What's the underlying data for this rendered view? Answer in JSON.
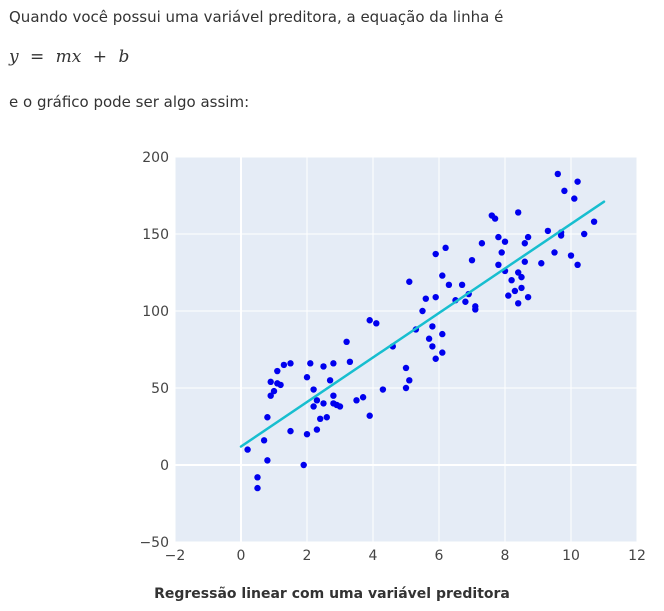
{
  "intro_text": "Quando você possui uma variável preditora, a equação da linha é",
  "equation": {
    "y": "y",
    "eq": "=",
    "m": "m",
    "x": "x",
    "plus": "+",
    "b": "b"
  },
  "after_text": "e o gráfico pode ser algo assim:",
  "chart_data": {
    "type": "scatter",
    "title": "Regressão linear com uma variável preditora",
    "xlim": [
      -2,
      12
    ],
    "ylim": [
      -50,
      200
    ],
    "xticks": [
      -2,
      0,
      2,
      4,
      6,
      8,
      10,
      12
    ],
    "yticks": [
      -50,
      0,
      50,
      100,
      150,
      200
    ],
    "xtick_labels": [
      "−2",
      "0",
      "2",
      "4",
      "6",
      "8",
      "10",
      "12"
    ],
    "ytick_labels": [
      "−50",
      "0",
      "50",
      "100",
      "150",
      "200"
    ],
    "grid": true,
    "series": [
      {
        "kind": "points",
        "color": "#0000ee",
        "points": [
          [
            0.2,
            10
          ],
          [
            0.5,
            -8
          ],
          [
            0.5,
            -15
          ],
          [
            0.7,
            16
          ],
          [
            0.8,
            3
          ],
          [
            0.8,
            31
          ],
          [
            0.9,
            54
          ],
          [
            0.9,
            45
          ],
          [
            1.0,
            48
          ],
          [
            1.1,
            53
          ],
          [
            1.1,
            61
          ],
          [
            1.2,
            52
          ],
          [
            1.3,
            65
          ],
          [
            1.5,
            22
          ],
          [
            1.5,
            66
          ],
          [
            1.9,
            0
          ],
          [
            2.0,
            20
          ],
          [
            2.0,
            57
          ],
          [
            2.1,
            66
          ],
          [
            2.2,
            38
          ],
          [
            2.2,
            49
          ],
          [
            2.3,
            23
          ],
          [
            2.3,
            42
          ],
          [
            2.4,
            30
          ],
          [
            2.5,
            40
          ],
          [
            2.5,
            64
          ],
          [
            2.6,
            31
          ],
          [
            2.7,
            55
          ],
          [
            2.8,
            40
          ],
          [
            2.8,
            45
          ],
          [
            2.8,
            66
          ],
          [
            2.9,
            39
          ],
          [
            3.0,
            38
          ],
          [
            3.2,
            80
          ],
          [
            3.3,
            67
          ],
          [
            3.5,
            42
          ],
          [
            3.7,
            44
          ],
          [
            3.9,
            32
          ],
          [
            3.9,
            94
          ],
          [
            4.1,
            92
          ],
          [
            4.3,
            49
          ],
          [
            4.6,
            77
          ],
          [
            5.0,
            50
          ],
          [
            5.0,
            63
          ],
          [
            5.1,
            55
          ],
          [
            5.1,
            119
          ],
          [
            5.3,
            88
          ],
          [
            5.5,
            100
          ],
          [
            5.6,
            108
          ],
          [
            5.7,
            82
          ],
          [
            5.8,
            90
          ],
          [
            5.8,
            77
          ],
          [
            5.9,
            69
          ],
          [
            5.9,
            109
          ],
          [
            5.9,
            137
          ],
          [
            6.1,
            73
          ],
          [
            6.1,
            85
          ],
          [
            6.1,
            123
          ],
          [
            6.2,
            141
          ],
          [
            6.3,
            117
          ],
          [
            6.5,
            107
          ],
          [
            6.7,
            117
          ],
          [
            6.8,
            106
          ],
          [
            6.9,
            111
          ],
          [
            7.0,
            133
          ],
          [
            7.1,
            101
          ],
          [
            7.1,
            103
          ],
          [
            7.3,
            144
          ],
          [
            7.6,
            162
          ],
          [
            7.7,
            160
          ],
          [
            7.8,
            148
          ],
          [
            7.8,
            130
          ],
          [
            7.9,
            138
          ],
          [
            8.0,
            126
          ],
          [
            8.0,
            145
          ],
          [
            8.1,
            110
          ],
          [
            8.2,
            120
          ],
          [
            8.3,
            113
          ],
          [
            8.4,
            125
          ],
          [
            8.4,
            105
          ],
          [
            8.4,
            164
          ],
          [
            8.5,
            115
          ],
          [
            8.5,
            122
          ],
          [
            8.6,
            132
          ],
          [
            8.6,
            144
          ],
          [
            8.7,
            148
          ],
          [
            8.7,
            109
          ],
          [
            9.1,
            131
          ],
          [
            9.3,
            152
          ],
          [
            9.5,
            138
          ],
          [
            9.6,
            189
          ],
          [
            9.7,
            149
          ],
          [
            9.7,
            151
          ],
          [
            9.8,
            178
          ],
          [
            10.0,
            136
          ],
          [
            10.1,
            173
          ],
          [
            10.2,
            184
          ],
          [
            10.2,
            130
          ],
          [
            10.4,
            150
          ],
          [
            10.7,
            158
          ]
        ]
      },
      {
        "kind": "line",
        "color": "#17becf",
        "x": [
          0,
          11
        ],
        "y": [
          12,
          171
        ]
      }
    ]
  }
}
